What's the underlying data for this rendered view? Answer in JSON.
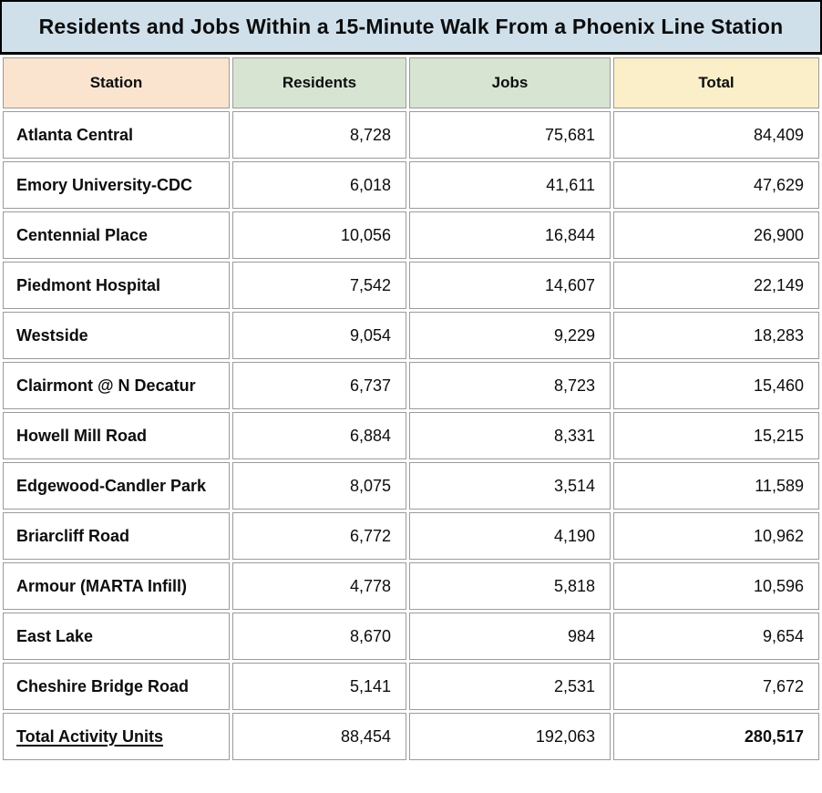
{
  "chart_data": {
    "type": "table",
    "title": "Residents and Jobs Within a 15-Minute Walk From a Phoenix Line Station",
    "columns": [
      "Station",
      "Residents",
      "Jobs",
      "Total"
    ],
    "rows": [
      [
        "Atlanta Central",
        "8,728",
        "75,681",
        "84,409"
      ],
      [
        "Emory University-CDC",
        "6,018",
        "41,611",
        "47,629"
      ],
      [
        "Centennial Place",
        "10,056",
        "16,844",
        "26,900"
      ],
      [
        "Piedmont Hospital",
        "7,542",
        "14,607",
        "22,149"
      ],
      [
        "Westside",
        "9,054",
        "9,229",
        "18,283"
      ],
      [
        "Clairmont @ N Decatur",
        "6,737",
        "8,723",
        "15,460"
      ],
      [
        "Howell Mill Road",
        "6,884",
        "8,331",
        "15,215"
      ],
      [
        "Edgewood-Candler Park",
        "8,075",
        "3,514",
        "11,589"
      ],
      [
        "Briarcliff Road",
        "6,772",
        "4,190",
        "10,962"
      ],
      [
        "Armour (MARTA Infill)",
        "4,778",
        "5,818",
        "10,596"
      ],
      [
        "East Lake",
        "8,670",
        "984",
        "9,654"
      ],
      [
        "Cheshire Bridge Road",
        "5,141",
        "2,531",
        "7,672"
      ]
    ],
    "footer": [
      "Total Activity Units",
      "88,454",
      "192,063",
      "280,517"
    ]
  },
  "colors": {
    "title_bg": "#cfe0eb",
    "station_header_bg": "#fae4cf",
    "residents_jobs_header_bg": "#d7e4d2",
    "total_column_bg": "#faefc9",
    "cell_border": "#9b9b9b",
    "title_border": "#000000",
    "text": "#0d0d0d"
  }
}
